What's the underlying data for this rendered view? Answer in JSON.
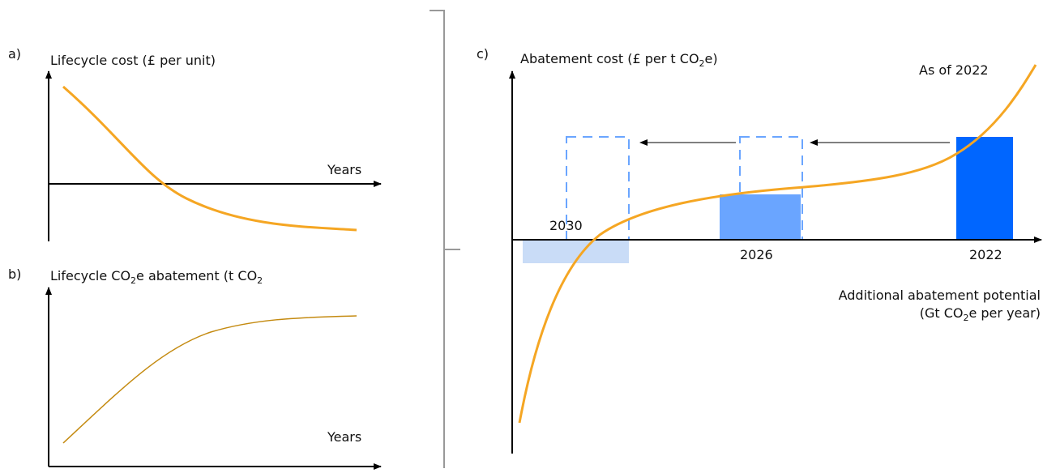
{
  "panel_a": {
    "label": "a)",
    "title": "Lifecycle cost (£ per unit)",
    "x_axis": "Years"
  },
  "panel_b": {
    "label": "b)",
    "title_parts": [
      "Lifecycle CO",
      "2",
      "e abatement (t CO",
      "2"
    ],
    "x_axis": "Years"
  },
  "panel_c": {
    "label": "c)",
    "title_parts": [
      "Abatement cost (£ per t CO",
      "2",
      "e)"
    ],
    "annotation": "As of 2022",
    "bar_labels": [
      "2030",
      "2026",
      "2022"
    ],
    "x_axis_line1": "Additional abatement potential",
    "x_axis_line2_parts": [
      "(Gt CO",
      "2",
      "e per year)"
    ]
  }
}
